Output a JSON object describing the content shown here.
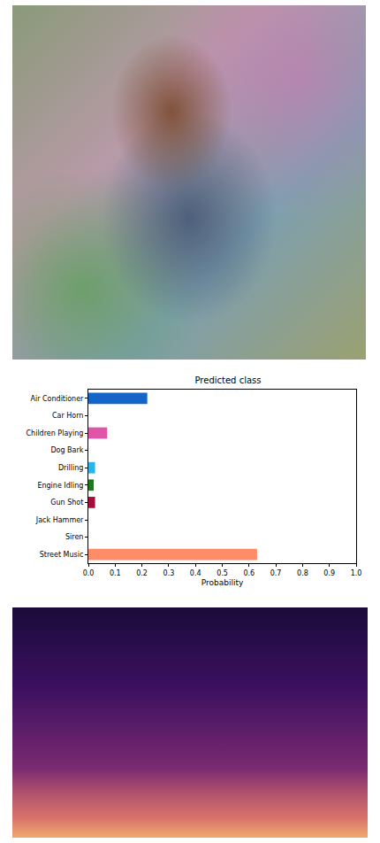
{
  "chart_data": {
    "type": "bar",
    "orientation": "horizontal",
    "title": "Predicted class",
    "x_label": "Probability",
    "categories": [
      "Air Conditioner",
      "Car Horn",
      "Children Playing",
      "Dog Bark",
      "Drilling",
      "Engine Idling",
      "Gun Shot",
      "Jack Hammer",
      "Siren",
      "Street Music"
    ],
    "values": [
      0.22,
      0,
      0.07,
      0,
      0.025,
      0.02,
      0.025,
      0,
      0,
      0.63
    ],
    "colors": [
      "#1565c8",
      "#ff9800",
      "#e055a8",
      "#8d6e63",
      "#29b6e6",
      "#1b7a1b",
      "#a50e3a",
      "#9e9e9e",
      "#7e57c2",
      "#ff8c69"
    ],
    "xlim": [
      0,
      1
    ],
    "xticks": [
      {
        "value": 0,
        "label": "0.0"
      },
      0.1,
      0.2,
      0.3,
      0.4,
      0.5,
      0.6,
      0.7,
      0.8,
      0.9,
      {
        "value": 1,
        "label": "1.0"
      }
    ],
    "grid": false
  }
}
